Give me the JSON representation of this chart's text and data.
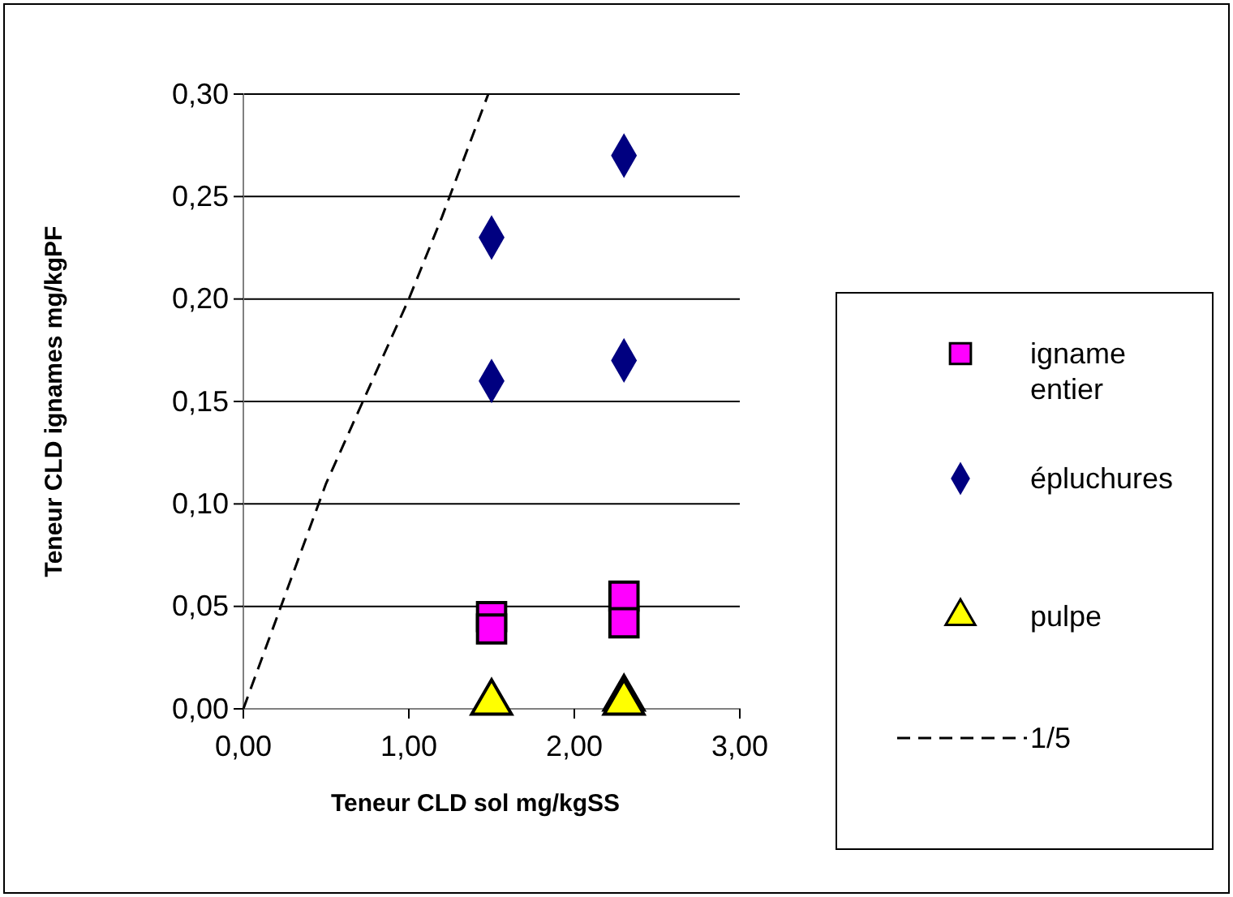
{
  "chart_data": {
    "type": "scatter",
    "xlabel": "Teneur CLD sol mg/kgSS",
    "ylabel": "Teneur CLD ignames mg/kgPF",
    "xlim": [
      0,
      3
    ],
    "xticks": [
      {
        "value": 0,
        "label": "0,00"
      },
      {
        "value": 1,
        "label": "1,00"
      },
      {
        "value": 2,
        "label": "2,00"
      },
      {
        "value": 3,
        "label": "3,00"
      }
    ],
    "ylim": [
      0,
      0.3
    ],
    "yticks": [
      {
        "value": 0,
        "label": "0,00"
      },
      {
        "value": 0.05,
        "label": "0,05"
      },
      {
        "value": 0.1,
        "label": "0,10"
      },
      {
        "value": 0.15,
        "label": "0,15"
      },
      {
        "value": 0.2,
        "label": "0,20"
      },
      {
        "value": 0.25,
        "label": "0,25"
      },
      {
        "value": 0.3,
        "label": "0,30"
      }
    ],
    "grid": "y",
    "legend": "right",
    "series": [
      {
        "name": "igname entier",
        "color": "#ff00ff",
        "marker": "square",
        "x": [
          1.5,
          1.5,
          2.3,
          2.3
        ],
        "values": [
          0.045,
          0.039,
          0.055,
          0.042
        ]
      },
      {
        "name": "épluchures",
        "color": "#000080",
        "marker": "diamond",
        "x": [
          1.5,
          1.5,
          2.3,
          2.3
        ],
        "values": [
          0.23,
          0.16,
          0.27,
          0.17
        ]
      },
      {
        "name": "pulpe",
        "color": "#ffff00",
        "marker": "triangle",
        "x": [
          1.5,
          2.3,
          2.3
        ],
        "values": [
          0.003,
          0.005,
          0.003
        ]
      },
      {
        "name": "1/5",
        "type": "line",
        "color": "#000000",
        "line_style": "dashed",
        "marker": "none",
        "x": [
          0,
          0.5,
          1.0,
          1.2,
          1.48
        ],
        "values": [
          0,
          0.11,
          0.2,
          0.24,
          0.3
        ]
      }
    ]
  }
}
